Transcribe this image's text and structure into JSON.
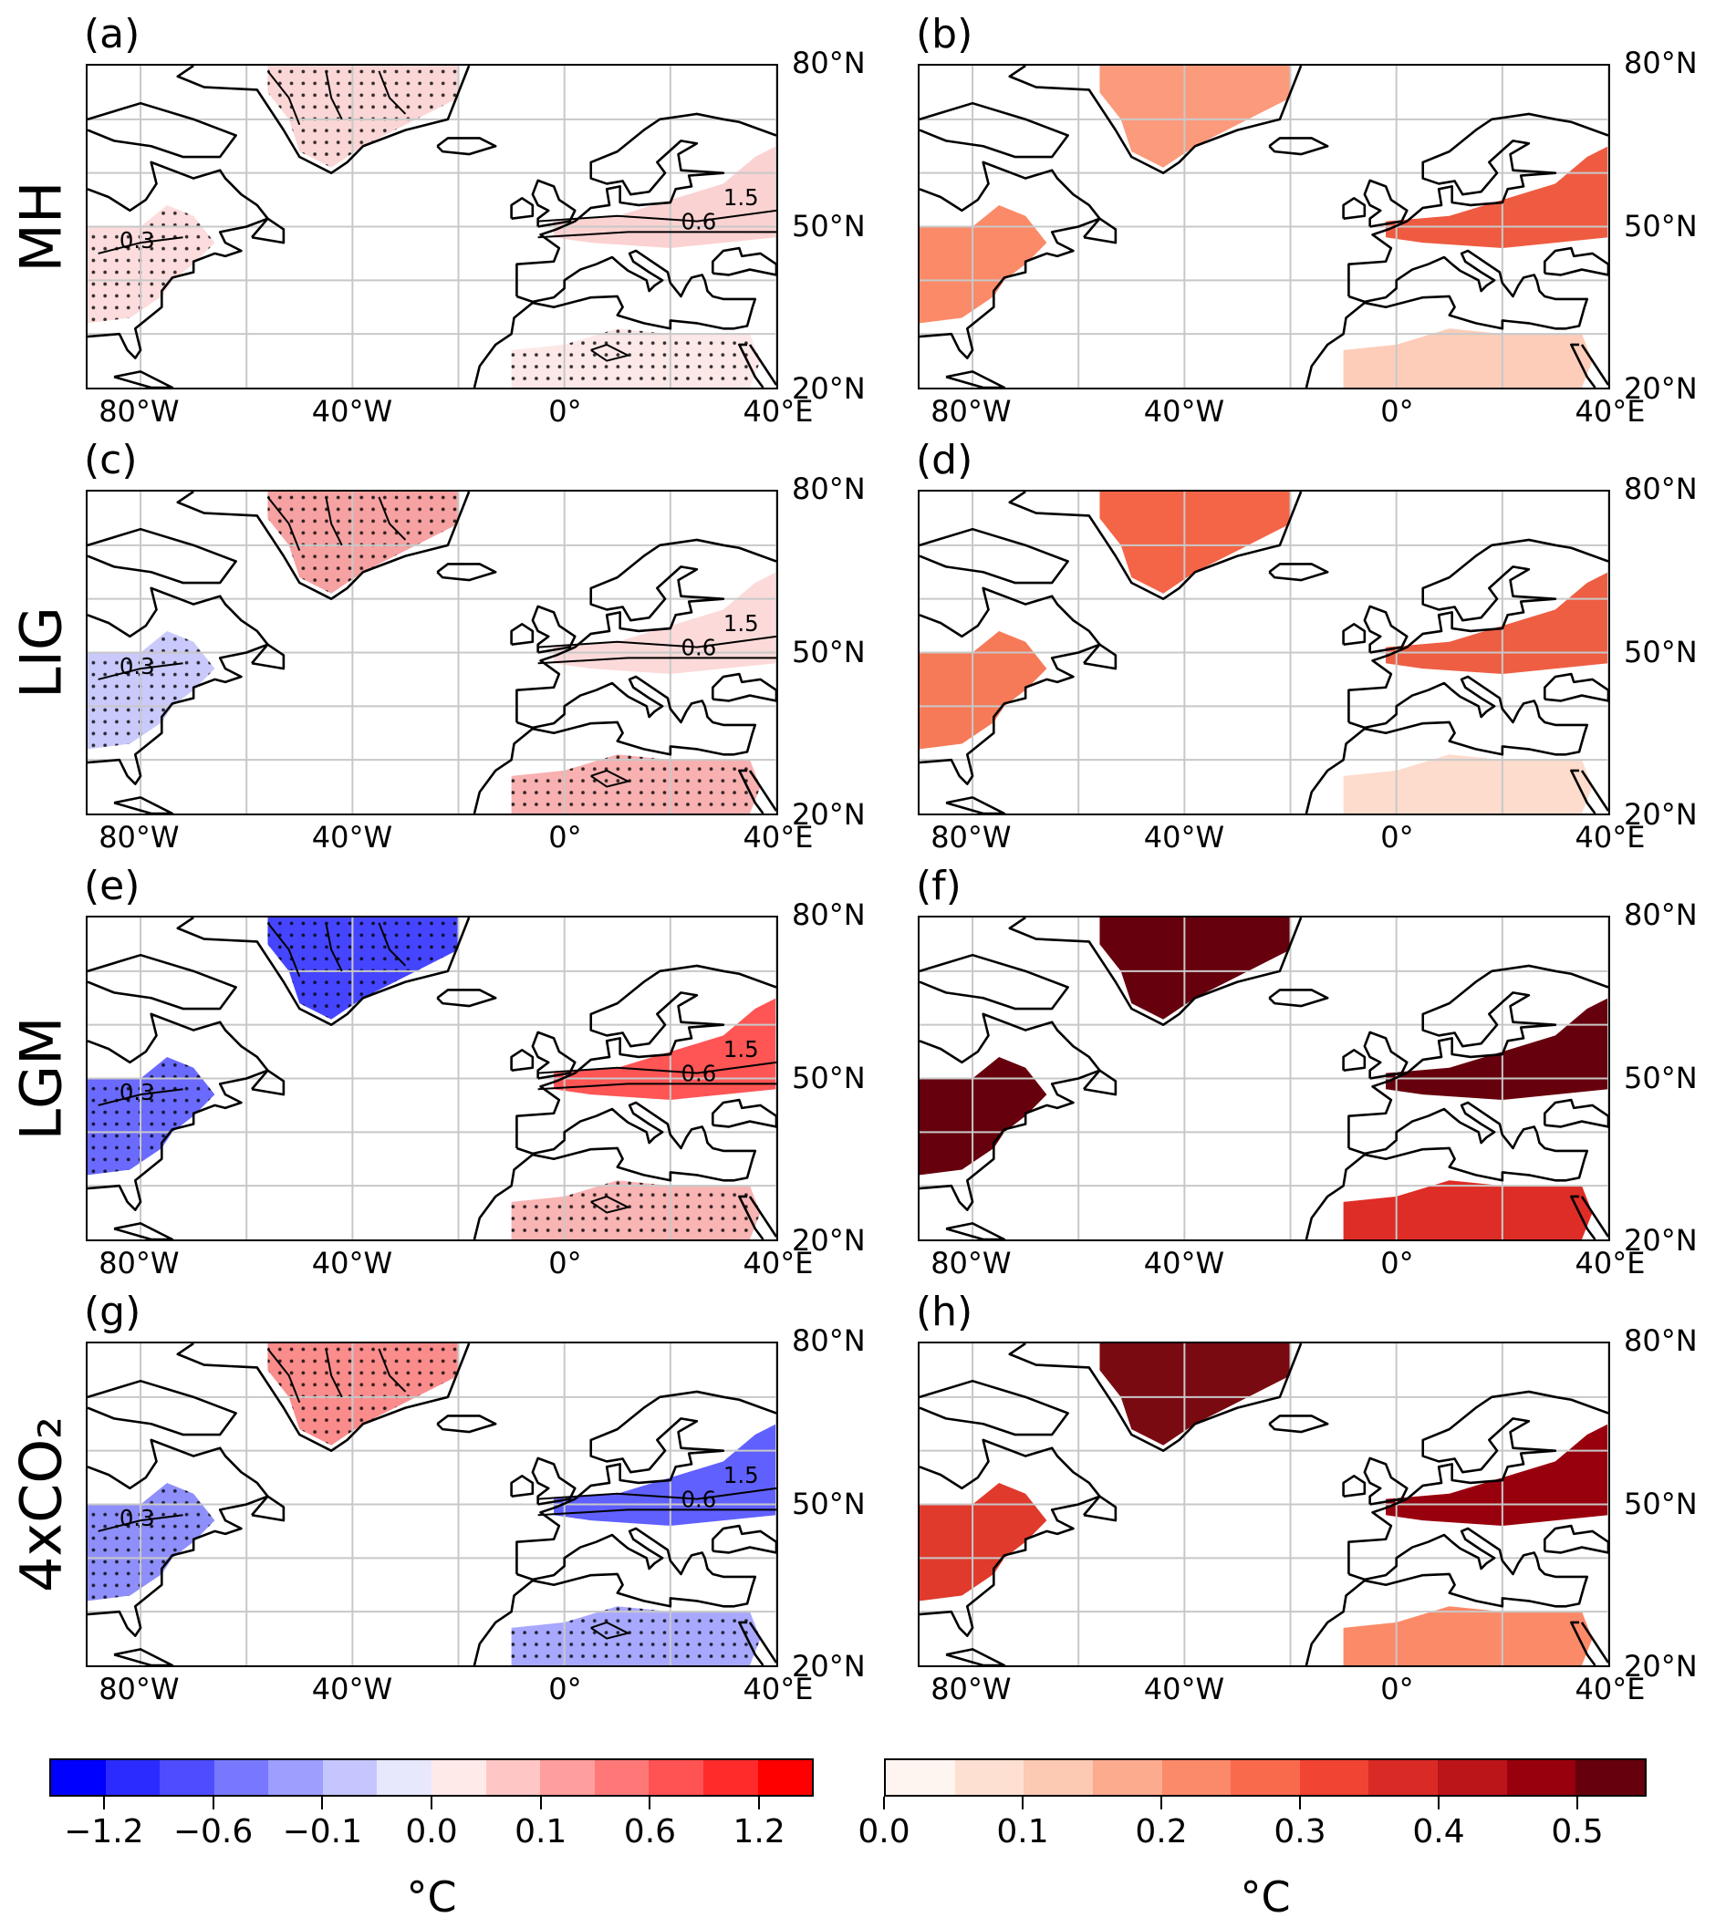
{
  "rows": [
    {
      "label": "MH",
      "left": {
        "tag": "(a)",
        "greenland": "#fbd6d6",
        "neam": "#fcdcdc",
        "europe": "#fbd2d2",
        "sahara": "#fde8e8",
        "stipple": true,
        "contour_labels": [
          "0.3",
          "1.5",
          "0.6"
        ]
      },
      "right": {
        "tag": "(b)",
        "greenland": "#fc9a7c",
        "neam": "#fb8a68",
        "europe": "#ef5b40",
        "sahara": "#fdcdb9"
      }
    },
    {
      "label": "LIG",
      "left": {
        "tag": "(c)",
        "greenland": "#f6a2a2",
        "neam": "#c9c9fb",
        "europe": "#fcdada",
        "sahara": "#f8b0b0",
        "stipple": true,
        "contour_labels": [
          "0.3",
          "1.5",
          "0.6"
        ]
      },
      "right": {
        "tag": "(d)",
        "greenland": "#f46446",
        "neam": "#f67a58",
        "europe": "#ee5e43",
        "sahara": "#fddccd"
      }
    },
    {
      "label": "LGM",
      "left": {
        "tag": "(e)",
        "greenland": "#4545ff",
        "neam": "#6a6aff",
        "europe": "#ff5555",
        "sahara": "#f9b4b4",
        "stipple": true,
        "contour_labels": [
          "0.3",
          "1.5",
          "0.6"
        ]
      },
      "right": {
        "tag": "(f)",
        "greenland": "#67000d",
        "neam": "#67000d",
        "europe": "#67000d",
        "sahara": "#de2d26"
      }
    },
    {
      "label": "4xCO₂",
      "left": {
        "tag": "(g)",
        "greenland": "#fa8c8c",
        "neam": "#8f8ffb",
        "europe": "#6060ff",
        "sahara": "#a8a8ff",
        "stipple": true,
        "contour_labels": [
          "0.3",
          "1.5",
          "0.6"
        ]
      },
      "right": {
        "tag": "(h)",
        "greenland": "#7a0a12",
        "neam": "#e03a2d",
        "europe": "#99000d",
        "sahara": "#fb8a68"
      }
    }
  ],
  "lon_ticks": [
    "80°W",
    "40°W",
    "0°",
    "40°E"
  ],
  "lat_ticks": [
    "80°N",
    "50°N",
    "20°N"
  ],
  "colorbar_left": {
    "colors": [
      "#0000ff",
      "#2b2bff",
      "#4d4dff",
      "#7878ff",
      "#9e9eff",
      "#c6c6ff",
      "#e8e8fd",
      "#ffeaea",
      "#ffc6c6",
      "#ff9e9e",
      "#ff7878",
      "#ff5252",
      "#ff2b2b",
      "#ff0000"
    ],
    "tick_labels": [
      "−1.2",
      "−0.6",
      "−0.1",
      "0.0",
      "0.1",
      "0.6",
      "1.2"
    ],
    "unit": "°C"
  },
  "colorbar_right": {
    "colors": [
      "#fff5f0",
      "#fee0d2",
      "#fcc9b3",
      "#fcab8f",
      "#fb8a6a",
      "#f96a4d",
      "#f14432",
      "#da2a25",
      "#bb1419",
      "#99000d",
      "#67000d"
    ],
    "tick_labels": [
      "0.0",
      "0.1",
      "0.2",
      "0.3",
      "0.4",
      "0.5"
    ],
    "unit": "°C"
  }
}
